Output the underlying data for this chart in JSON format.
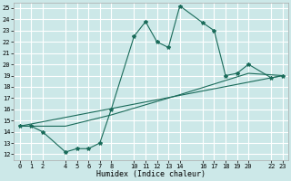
{
  "xlabel": "Humidex (Indice chaleur)",
  "ylabel": "",
  "bg_color": "#cce8e8",
  "grid_color": "#ffffff",
  "line_color": "#1a6b5a",
  "xlim": [
    -0.5,
    23.5
  ],
  "ylim": [
    11.5,
    25.5
  ],
  "xticks": [
    0,
    1,
    2,
    4,
    5,
    6,
    7,
    8,
    10,
    11,
    12,
    13,
    14,
    16,
    17,
    18,
    19,
    20,
    22,
    23
  ],
  "yticks": [
    12,
    13,
    14,
    15,
    16,
    17,
    18,
    19,
    20,
    21,
    22,
    23,
    24,
    25
  ],
  "series1_x": [
    0,
    1,
    2,
    4,
    5,
    6,
    7,
    8,
    10,
    11,
    12,
    13,
    14,
    16,
    17,
    18,
    19,
    20,
    22,
    23
  ],
  "series1_y": [
    14.5,
    14.5,
    14.0,
    12.2,
    12.5,
    12.5,
    13.0,
    16.0,
    22.5,
    23.8,
    22.0,
    21.5,
    25.2,
    23.7,
    23.0,
    19.0,
    19.2,
    20.0,
    18.8,
    19.0
  ],
  "series2_x": [
    0,
    4,
    8,
    14,
    20,
    23
  ],
  "series2_y": [
    14.5,
    14.5,
    15.5,
    17.3,
    19.2,
    19.0
  ],
  "series3_x": [
    0,
    23
  ],
  "series3_y": [
    14.5,
    19.0
  ],
  "marker_x": [
    0,
    1,
    2,
    4,
    5,
    6,
    7,
    8,
    10,
    11,
    12,
    13,
    14,
    16,
    17,
    18,
    19,
    20,
    22,
    23
  ],
  "marker_y": [
    14.5,
    14.5,
    14.0,
    12.2,
    12.5,
    12.5,
    13.0,
    16.0,
    22.5,
    23.8,
    22.0,
    21.5,
    25.2,
    23.7,
    23.0,
    19.0,
    19.2,
    20.0,
    18.8,
    19.0
  ]
}
